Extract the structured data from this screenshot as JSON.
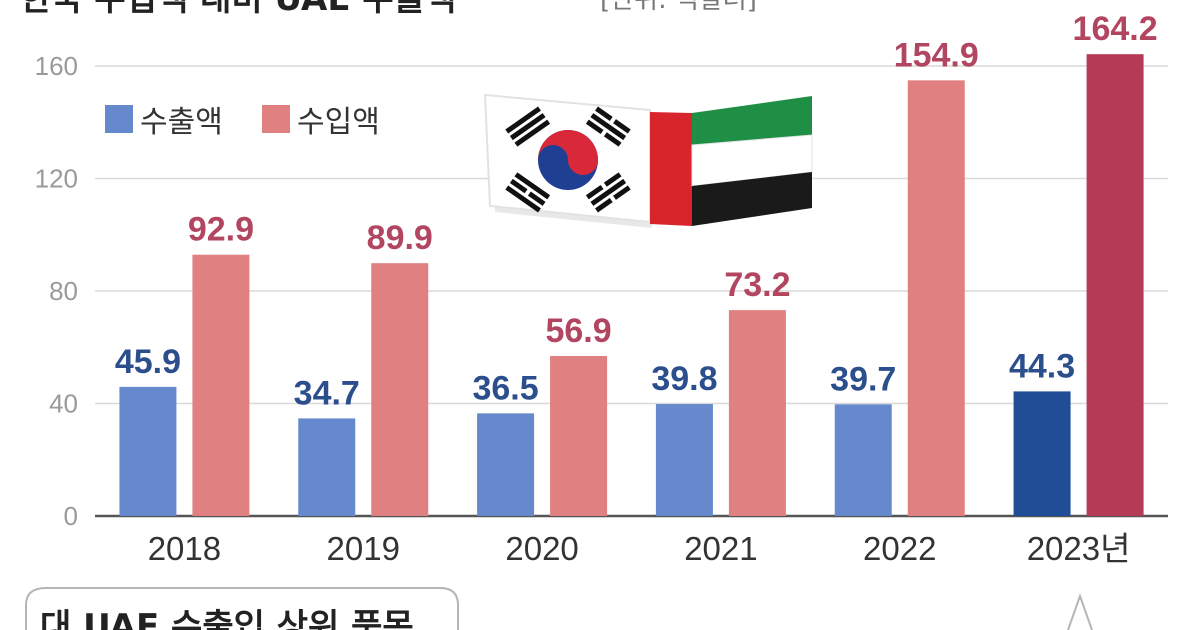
{
  "title": "한국 수입액 대비 UAE 수출액",
  "note": "[단위: 억달러]",
  "source_box": "대 UAE 수출입 상위 품목",
  "flags": [
    "south-korea-flag",
    "uae-flag"
  ],
  "colors": {
    "export": "#6688cc",
    "import": "#e08080",
    "export_highlight": "#1f4e96",
    "import_highlight": "#b53a55",
    "export_label": "#2b4e8c",
    "import_label": "#b24560"
  },
  "chart_data": {
    "type": "bar",
    "categories": [
      "2018",
      "2019",
      "2020",
      "2021",
      "2022",
      "2023년"
    ],
    "series": [
      {
        "name": "수출액",
        "values": [
          45.9,
          34.7,
          36.5,
          39.8,
          39.7,
          44.3
        ]
      },
      {
        "name": "수입액",
        "values": [
          92.9,
          89.9,
          56.9,
          73.2,
          154.9,
          164.2
        ]
      }
    ],
    "value_labels": {
      "수출액": [
        "45.9",
        "34.7",
        "36.5",
        "39.8",
        "39.7",
        "44.3"
      ],
      "수입액": [
        "92.9",
        "89.9",
        "56.9",
        "73.2",
        "154.9",
        "164.2"
      ]
    },
    "yticks": [
      "0",
      "40",
      "80",
      "120",
      "160"
    ],
    "ylim": [
      0,
      160
    ],
    "grid": true,
    "legend_position": "top-left",
    "highlight_category": "2023년"
  }
}
